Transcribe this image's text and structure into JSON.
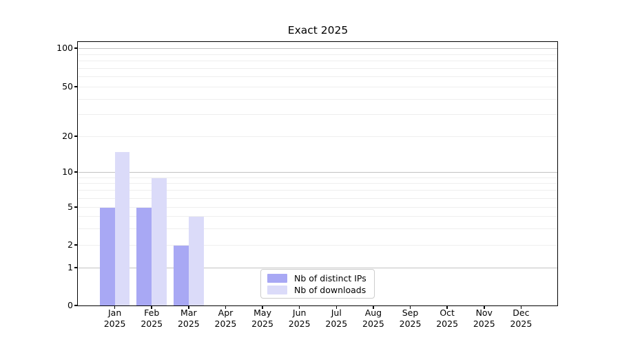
{
  "chart_data": {
    "type": "bar",
    "title": "Exact 2025",
    "categories": [
      "Jan",
      "Feb",
      "Mar",
      "Apr",
      "May",
      "Jun",
      "Jul",
      "Aug",
      "Sep",
      "Oct",
      "Nov",
      "Dec"
    ],
    "year_label": "2025",
    "series": [
      {
        "name": "Nb of distinct IPs",
        "color": "#a8a8f4",
        "values": [
          5,
          5,
          2,
          0,
          0,
          0,
          0,
          0,
          0,
          0,
          0,
          0
        ]
      },
      {
        "name": "Nb of downloads",
        "color": "#dbdbf9",
        "values": [
          15,
          9,
          4,
          0,
          0,
          0,
          0,
          0,
          0,
          0,
          0,
          0
        ]
      }
    ],
    "xlabel": "",
    "ylabel": "",
    "y_axis": {
      "scale": "log-like",
      "range": [
        0,
        100
      ],
      "tick_values": [
        0,
        1,
        2,
        5,
        10,
        20,
        50,
        100
      ]
    },
    "grid": {
      "enabled": true,
      "major_values": [
        1,
        10,
        100
      ],
      "minor_values": [
        2,
        3,
        4,
        5,
        6,
        7,
        8,
        9,
        20,
        30,
        40,
        50,
        60,
        70,
        80,
        90
      ],
      "major_color": "#c2c2c2",
      "minor_color": "#eeeeee"
    },
    "legend": {
      "position": "bottom-center",
      "border_color": "#cccccc"
    },
    "colors": {
      "axis": "#000000",
      "background": "#ffffff",
      "text": "#000000"
    }
  }
}
